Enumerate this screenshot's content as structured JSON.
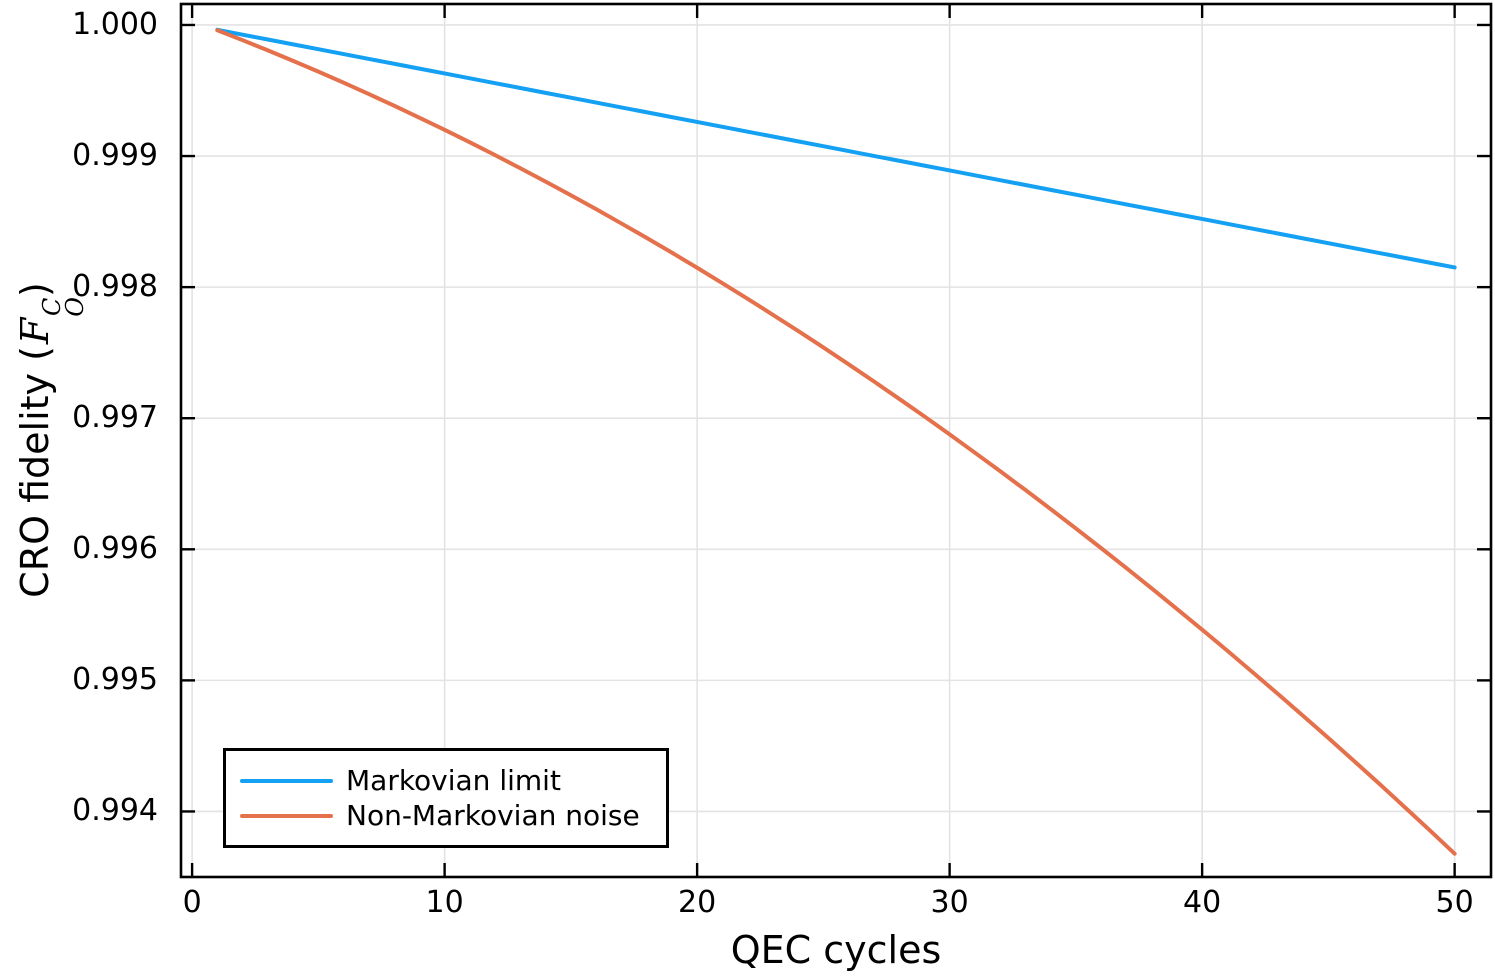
{
  "figure": {
    "background": "#ffffff",
    "frame_color": "#000000",
    "grid_color": "#e3e3e3",
    "tick_color": "#000000"
  },
  "axes": {
    "x": {
      "label": "QEC cycles",
      "tick_labels": [
        "0",
        "10",
        "20",
        "30",
        "40",
        "50"
      ],
      "tick_values": [
        0,
        10,
        20,
        30,
        40,
        50
      ]
    },
    "y": {
      "label_prefix": "CRO fidelity (",
      "label_math_f": "F",
      "label_math_sup": "C",
      "label_math_sub": "O",
      "label_suffix": ")",
      "tick_labels": [
        "1.000",
        "0.999",
        "0.998",
        "0.997",
        "0.996",
        "0.995",
        "0.994"
      ],
      "tick_values": [
        1.0,
        0.999,
        0.998,
        0.997,
        0.996,
        0.995,
        0.994
      ]
    }
  },
  "legend": {
    "position": "bottom-left",
    "items": [
      {
        "label": "Markovian limit",
        "color": "#14a0f3"
      },
      {
        "label": "Non-Markovian noise",
        "color": "#e4714b"
      }
    ]
  },
  "chart_data": {
    "type": "line",
    "title": "",
    "xlabel": "QEC cycles",
    "ylabel": "CRO fidelity (F_O^C)",
    "xlim": [
      -0.44,
      51.44
    ],
    "ylim": [
      0.9935,
      1.00016
    ],
    "grid": true,
    "legend_position": "bottom-left",
    "x": [
      1,
      2,
      3,
      4,
      5,
      6,
      7,
      8,
      9,
      10,
      11,
      12,
      13,
      14,
      15,
      16,
      17,
      18,
      19,
      20,
      21,
      22,
      23,
      24,
      25,
      26,
      27,
      28,
      29,
      30,
      31,
      32,
      33,
      34,
      35,
      36,
      37,
      38,
      39,
      40,
      41,
      42,
      43,
      44,
      45,
      46,
      47,
      48,
      49,
      50
    ],
    "series": [
      {
        "name": "Markovian limit",
        "color": "#14a0f3",
        "values": [
          0.999963,
          0.999926,
          0.999889,
          0.999852,
          0.999815,
          0.999778,
          0.999741,
          0.999704,
          0.999667,
          0.99963,
          0.999593,
          0.999556,
          0.999519,
          0.999482,
          0.999445,
          0.999408,
          0.999371,
          0.999334,
          0.999297,
          0.99926,
          0.999223,
          0.999186,
          0.999149,
          0.999112,
          0.999075,
          0.999038,
          0.999001,
          0.998964,
          0.998927,
          0.99889,
          0.998853,
          0.998816,
          0.998779,
          0.998742,
          0.998705,
          0.998668,
          0.998631,
          0.998594,
          0.998557,
          0.99852,
          0.998483,
          0.998446,
          0.998409,
          0.998372,
          0.998335,
          0.998298,
          0.998261,
          0.998224,
          0.998187,
          0.99815
        ]
      },
      {
        "name": "Non-Markovian noise",
        "color": "#e4714b",
        "values": [
          0.99996,
          0.999884,
          0.999806,
          0.999726,
          0.999644,
          0.99956,
          0.999473,
          0.999384,
          0.999293,
          0.9992,
          0.999105,
          0.999007,
          0.998907,
          0.998805,
          0.998701,
          0.998595,
          0.998486,
          0.998376,
          0.998263,
          0.998148,
          0.99803,
          0.997911,
          0.997789,
          0.997666,
          0.99754,
          0.997411,
          0.997281,
          0.997148,
          0.997014,
          0.996877,
          0.996737,
          0.996596,
          0.996453,
          0.996307,
          0.996159,
          0.996009,
          0.995857,
          0.995702,
          0.995545,
          0.995387,
          0.995226,
          0.995062,
          0.994897,
          0.994729,
          0.99456,
          0.994388,
          0.994214,
          0.994037,
          0.993859,
          0.993678
        ]
      }
    ]
  }
}
